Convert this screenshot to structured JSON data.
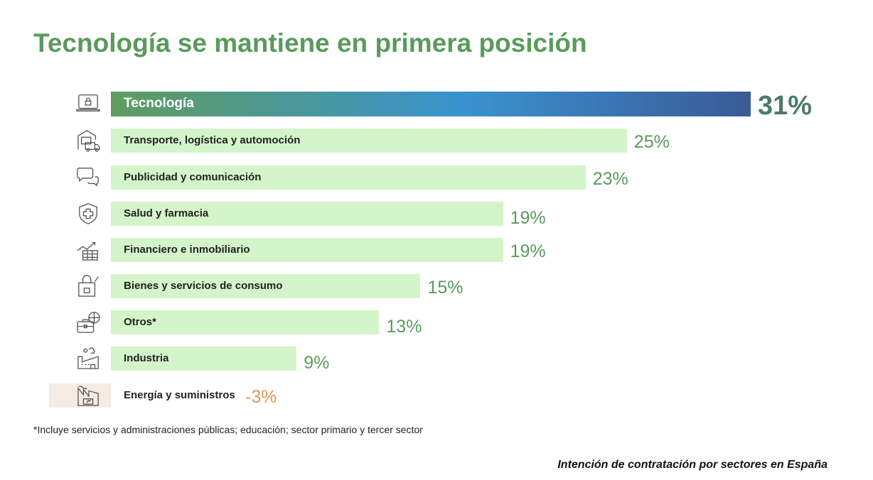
{
  "title": "Tecnología se mantiene en primera posición",
  "footnote": "*Incluye servicios y administraciones públicas; educación; sector primario y tercer sector",
  "caption": "Intención de contratación por sectores en España",
  "colors": {
    "title": "#5a9a5c",
    "bar": "#d4f5c9",
    "negative": "#e0955a"
  },
  "chart_data": {
    "type": "bar",
    "orientation": "horizontal",
    "title": "Tecnología se mantiene en primera posición",
    "categories": [
      "Tecnología",
      "Transporte, logística y automoción",
      "Publicidad y comunicación",
      "Salud y farmacia",
      "Financiero e inmobiliario",
      "Bienes y servicios de consumo",
      "Otros*",
      "Industria",
      "Energía y suministros"
    ],
    "values": [
      31,
      25,
      23,
      19,
      19,
      15,
      13,
      9,
      -3
    ],
    "labels": [
      "31%",
      "25%",
      "23%",
      "19%",
      "19%",
      "15%",
      "13%",
      "9%",
      "-3%"
    ],
    "icons": [
      "laptop-lock-icon",
      "warehouse-truck-icon",
      "chat-bubbles-icon",
      "shield-cross-icon",
      "chart-building-icon",
      "shopping-bag-icon",
      "briefcase-globe-icon",
      "factory-icon",
      "energy-factory-icon"
    ],
    "xlim": [
      -3,
      31
    ],
    "unit": "%"
  }
}
